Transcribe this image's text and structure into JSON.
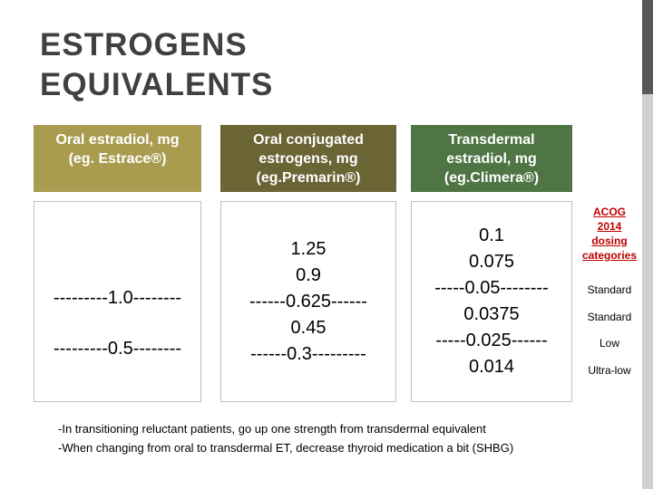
{
  "title": [
    "ESTROGENS",
    "EQUIVALENTS"
  ],
  "columns": [
    {
      "header": [
        "Oral estradiol, mg",
        "(eg. Estrace®)"
      ],
      "values": [
        "---------1.0--------",
        "---------0.5--------"
      ]
    },
    {
      "header": [
        "Oral conjugated",
        "estrogens, mg",
        "(eg.Premarin®)"
      ],
      "values": [
        "1.25",
        "0.9",
        "------0.625------",
        "0.45",
        "------0.3---------"
      ]
    },
    {
      "header": [
        "Transdermal",
        "estradiol, mg",
        "(eg.Climera®)"
      ],
      "values": [
        "0.1",
        "0.075",
        "-----0.05--------",
        "0.0375",
        "-----0.025------",
        "0.014"
      ]
    }
  ],
  "acog": {
    "heading": [
      "ACOG",
      "2014",
      "dosing",
      "categories"
    ],
    "categories": [
      "Standard",
      "Standard",
      "Low",
      "Ultra-low"
    ]
  },
  "notes": [
    "-In transitioning reluctant patients, go up one strength from transdermal equivalent",
    "-When changing from oral to transdermal ET, decrease thyroid medication a bit (SHBG)"
  ]
}
